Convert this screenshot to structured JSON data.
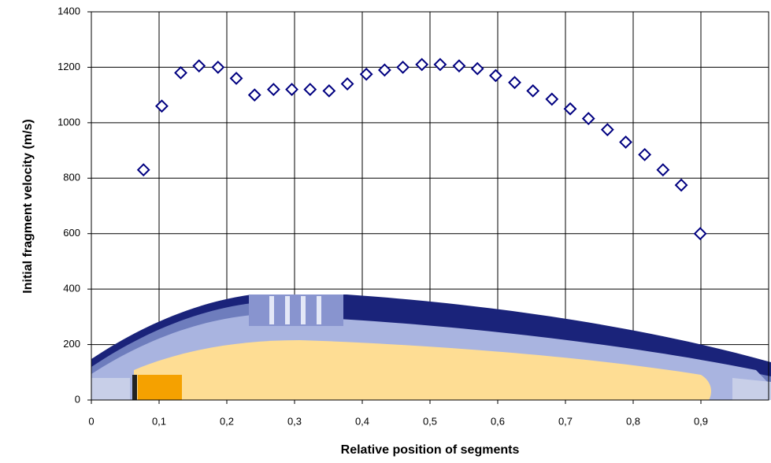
{
  "chart_data": {
    "type": "scatter",
    "x_label": "Relative position of segments",
    "y_label": "Initial fragment velocity (m/s)",
    "x": [
      0.077,
      0.104,
      0.132,
      0.159,
      0.187,
      0.214,
      0.241,
      0.269,
      0.296,
      0.323,
      0.351,
      0.378,
      0.406,
      0.433,
      0.46,
      0.488,
      0.515,
      0.543,
      0.57,
      0.597,
      0.625,
      0.652,
      0.68,
      0.707,
      0.734,
      0.762,
      0.789,
      0.817,
      0.844,
      0.871,
      0.899
    ],
    "values": [
      830,
      1060,
      1180,
      1205,
      1200,
      1160,
      1100,
      1120,
      1120,
      1120,
      1115,
      1140,
      1175,
      1190,
      1200,
      1210,
      1210,
      1205,
      1195,
      1170,
      1145,
      1115,
      1085,
      1050,
      1015,
      975,
      930,
      885,
      830,
      775,
      600
    ],
    "color": "#000080",
    "marker": "diamond",
    "xlim": [
      0,
      1
    ],
    "xticks": [
      0,
      {
        "value": 0.1,
        "label": "0,1"
      },
      {
        "value": 0.2,
        "label": "0,2"
      },
      {
        "value": 0.3,
        "label": "0,3"
      },
      {
        "value": 0.4,
        "label": "0,4"
      },
      {
        "value": 0.5,
        "label": "0,5"
      },
      {
        "value": 0.6,
        "label": "0,6"
      },
      {
        "value": 0.7,
        "label": "0,7"
      },
      {
        "value": 0.8,
        "label": "0,8"
      },
      {
        "value": 0.9,
        "label": "0,9"
      }
    ],
    "ylim": [
      0,
      1400
    ],
    "yticks": [
      0,
      200,
      400,
      600,
      800,
      1000,
      1200,
      1400
    ],
    "grid": true
  }
}
